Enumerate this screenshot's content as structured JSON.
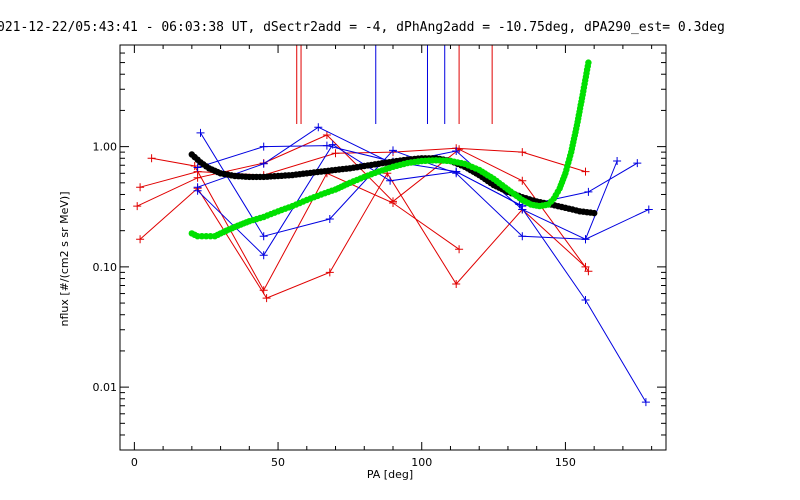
{
  "chart_data": {
    "type": "line",
    "title": "021-12-22/05:43:41 - 06:03:38 UT, dSectr2add = -4, dPhAng2add = -10.75deg, dPA290_est=   0.3deg",
    "xlabel": "PA [deg]",
    "ylabel": "nflux [#/(cm2 s sr MeV)]",
    "xlim": [
      -5,
      185
    ],
    "ylim": [
      0.003,
      7.0
    ],
    "yscale": "log",
    "x_ticks": [
      0,
      50,
      100,
      150
    ],
    "x_tick_labels": [
      "0",
      "50",
      "100",
      "150"
    ],
    "y_ticks": [
      1.0,
      0.1,
      0.01
    ],
    "y_tick_labels": [
      "1.00",
      "0.10",
      "0.01"
    ],
    "grid": false,
    "colors": {
      "red": "#e00000",
      "blue": "#0000e0",
      "black": "#000000",
      "green": "#00e000"
    },
    "vertical_markers": [
      {
        "x": 56.5,
        "color": "#e00000"
      },
      {
        "x": 58.0,
        "color": "#e00000"
      },
      {
        "x": 84.0,
        "color": "#0000e0"
      },
      {
        "x": 102.0,
        "color": "#0000e0"
      },
      {
        "x": 108.0,
        "color": "#0000e0"
      },
      {
        "x": 113.0,
        "color": "#e00000"
      },
      {
        "x": 124.5,
        "color": "#e00000"
      }
    ],
    "series": [
      {
        "color": "#e00000",
        "x": [
          2,
          22,
          45,
          70,
          90,
          112,
          135,
          157
        ],
        "y": [
          0.46,
          0.62,
          0.58,
          0.88,
          0.9,
          0.97,
          0.9,
          0.62
        ]
      },
      {
        "color": "#e00000",
        "x": [
          2,
          22,
          46,
          68,
          88,
          112,
          135,
          157
        ],
        "y": [
          0.17,
          0.45,
          0.055,
          0.09,
          0.6,
          0.072,
          0.3,
          0.1
        ]
      },
      {
        "color": "#e00000",
        "x": [
          6,
          21,
          45,
          67,
          90,
          113
        ],
        "y": [
          0.8,
          0.69,
          0.064,
          0.6,
          0.34,
          0.14
        ]
      },
      {
        "color": "#e00000",
        "x": [
          1,
          22,
          45,
          67,
          90,
          113,
          135,
          158
        ],
        "y": [
          0.32,
          0.55,
          0.73,
          1.25,
          0.35,
          0.95,
          0.52,
          0.092
        ]
      },
      {
        "color": "#0000e0",
        "x": [
          23,
          45,
          68,
          90,
          112,
          135,
          157,
          179
        ],
        "y": [
          1.3,
          0.18,
          0.25,
          0.93,
          0.6,
          0.18,
          0.17,
          0.3
        ]
      },
      {
        "color": "#0000e0",
        "x": [
          22,
          45,
          69,
          89,
          112,
          134,
          157,
          178
        ],
        "y": [
          0.43,
          0.125,
          1.04,
          0.52,
          0.62,
          0.33,
          0.053,
          0.0075
        ]
      },
      {
        "color": "#0000e0",
        "x": [
          22,
          45,
          67,
          90,
          112,
          135,
          158,
          175
        ],
        "y": [
          0.67,
          1.0,
          1.02,
          0.75,
          0.62,
          0.32,
          0.42,
          0.73
        ]
      },
      {
        "color": "#0000e0",
        "x": [
          22,
          45,
          64,
          90,
          112,
          135,
          157,
          168
        ],
        "y": [
          0.46,
          0.72,
          1.45,
          0.72,
          0.92,
          0.3,
          0.17,
          0.76
        ]
      },
      {
        "color": "#000000",
        "thick": true,
        "x": [
          20,
          23,
          26,
          30,
          35,
          40,
          45,
          50,
          55,
          60,
          65,
          70,
          75,
          80,
          85,
          90,
          95,
          100,
          105,
          110,
          115,
          120,
          125,
          130,
          135,
          140,
          145,
          150,
          155,
          160
        ],
        "y": [
          0.86,
          0.74,
          0.66,
          0.6,
          0.57,
          0.56,
          0.56,
          0.57,
          0.58,
          0.6,
          0.62,
          0.64,
          0.66,
          0.69,
          0.72,
          0.75,
          0.78,
          0.8,
          0.8,
          0.76,
          0.68,
          0.58,
          0.48,
          0.42,
          0.38,
          0.35,
          0.33,
          0.31,
          0.29,
          0.28
        ]
      },
      {
        "color": "#00e000",
        "thick": true,
        "x": [
          20,
          22,
          25,
          28,
          32,
          36,
          40,
          45,
          50,
          55,
          60,
          65,
          70,
          75,
          80,
          85,
          90,
          95,
          100,
          105,
          110,
          115,
          120,
          125,
          130,
          135,
          138,
          141,
          144,
          146,
          148,
          150,
          152,
          154,
          156,
          158
        ],
        "y": [
          0.19,
          0.18,
          0.18,
          0.18,
          0.2,
          0.22,
          0.24,
          0.26,
          0.29,
          0.32,
          0.36,
          0.4,
          0.44,
          0.5,
          0.56,
          0.62,
          0.68,
          0.73,
          0.76,
          0.77,
          0.76,
          0.72,
          0.64,
          0.54,
          0.44,
          0.36,
          0.33,
          0.32,
          0.33,
          0.37,
          0.45,
          0.6,
          0.9,
          1.5,
          2.7,
          5.0
        ]
      }
    ]
  }
}
